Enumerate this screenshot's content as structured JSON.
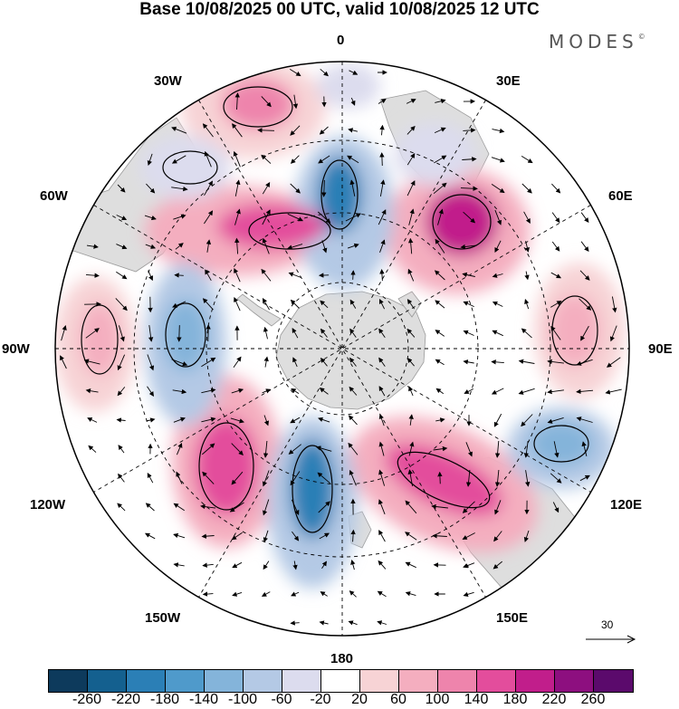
{
  "title": "Base 10/08/2025 00 UTC, valid 10/08/2025 12 UTC",
  "brand": "MODES",
  "brand_mark": "©",
  "longitude_labels": [
    "0",
    "30E",
    "60E",
    "90E",
    "120E",
    "150E",
    "180",
    "150W",
    "120W",
    "90W",
    "60W",
    "30W"
  ],
  "vector_scale_label": "30",
  "colorbar": {
    "ticks": [
      "-260",
      "-220",
      "-180",
      "-140",
      "-100",
      "-60",
      "-20",
      "20",
      "60",
      "100",
      "140",
      "180",
      "220",
      "260"
    ],
    "colors": [
      "#0d3a5c",
      "#14608f",
      "#2b7fb6",
      "#4f9acb",
      "#84b4da",
      "#b4c9e5",
      "#dcdcee",
      "#ffffff",
      "#f7d3d5",
      "#f4aebf",
      "#ee84ac",
      "#e34d9c",
      "#c11e8b",
      "#8d0f7f",
      "#5b0a6c"
    ]
  },
  "anomaly_cells": [
    {
      "name": "low-south-atlantic",
      "value": -220,
      "color": "#2b7fb6"
    },
    {
      "name": "low-south-pacific",
      "value": -200,
      "color": "#2b7fb6"
    },
    {
      "name": "low-southeast-pacific",
      "value": -120,
      "color": "#84b4da"
    },
    {
      "name": "low-south-of-australia",
      "value": -130,
      "color": "#84b4da"
    },
    {
      "name": "high-southwest-atlantic",
      "value": 180,
      "color": "#e34d9c"
    },
    {
      "name": "high-southern-indian",
      "value": 200,
      "color": "#c11e8b"
    },
    {
      "name": "high-southeast-pacific",
      "value": 180,
      "color": "#e34d9c"
    },
    {
      "name": "high-south-of-new-zealand",
      "value": 160,
      "color": "#e34d9c"
    },
    {
      "name": "high-south-atlantic-north",
      "value": 140,
      "color": "#ee84ac"
    },
    {
      "name": "high-indian-90e",
      "value": 80,
      "color": "#f4aebf"
    },
    {
      "name": "high-eastern-pacific-90w",
      "value": 80,
      "color": "#f4aebf"
    }
  ]
}
